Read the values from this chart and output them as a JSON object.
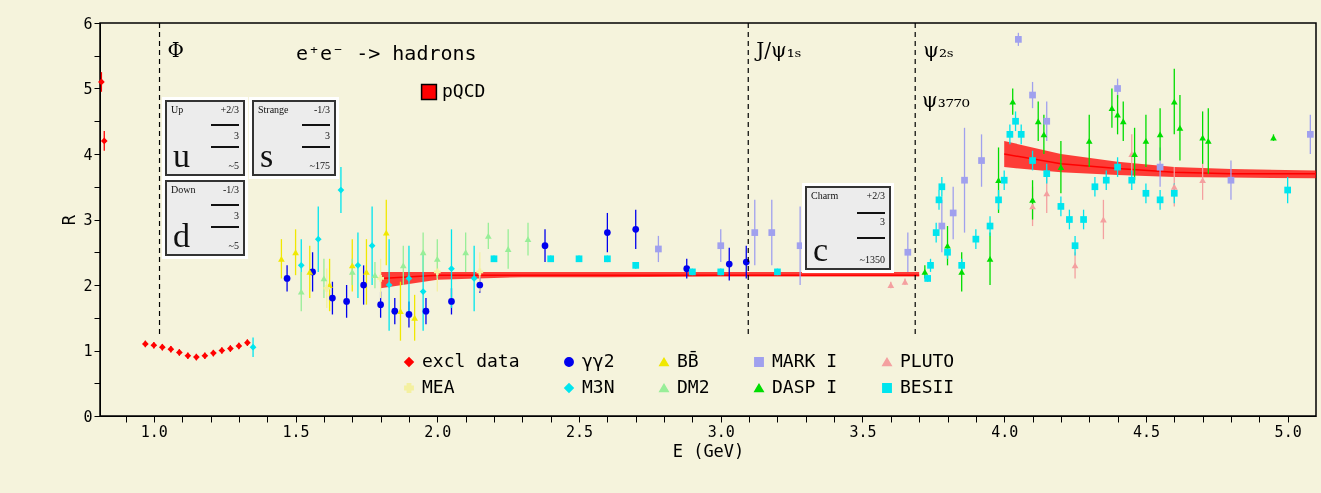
{
  "chart_data": {
    "type": "scatter",
    "title": "e⁺e⁻ -> hadrons",
    "xlabel": "E (GeV)",
    "ylabel": "R",
    "xlim": [
      0.81,
      5.1
    ],
    "ylim": [
      0,
      6
    ],
    "xticks": [
      {
        "value": 0.9,
        "label": null
      },
      {
        "value": 1,
        "label": "1.0"
      },
      {
        "value": 1.1,
        "label": null
      },
      {
        "value": 1.2,
        "label": null
      },
      {
        "value": 1.3,
        "label": null
      },
      {
        "value": 1.4,
        "label": null
      },
      1.5,
      {
        "value": 1.6,
        "label": null
      },
      {
        "value": 1.7,
        "label": null
      },
      {
        "value": 1.8,
        "label": null
      },
      {
        "value": 1.9,
        "label": null
      },
      {
        "value": 2,
        "label": "2.0"
      },
      {
        "value": 2.1,
        "label": null
      },
      {
        "value": 2.2,
        "label": null
      },
      {
        "value": 2.3,
        "label": null
      },
      {
        "value": 2.4,
        "label": null
      },
      2.5,
      {
        "value": 2.6,
        "label": null
      },
      {
        "value": 2.7,
        "label": null
      },
      {
        "value": 2.8,
        "label": null
      },
      {
        "value": 2.9,
        "label": null
      },
      {
        "value": 3,
        "label": "3.0"
      },
      {
        "value": 3.1,
        "label": null
      },
      {
        "value": 3.2,
        "label": null
      },
      {
        "value": 3.3,
        "label": null
      },
      {
        "value": 3.4,
        "label": null
      },
      3.5,
      {
        "value": 3.6,
        "label": null
      },
      {
        "value": 3.7,
        "label": null
      },
      {
        "value": 3.8,
        "label": null
      },
      {
        "value": 3.9,
        "label": null
      },
      {
        "value": 4,
        "label": "4.0"
      },
      {
        "value": 4.1,
        "label": null
      },
      {
        "value": 4.2,
        "label": null
      },
      {
        "value": 4.3,
        "label": null
      },
      {
        "value": 4.4,
        "label": null
      },
      4.5,
      {
        "value": 4.6,
        "label": null
      },
      {
        "value": 4.7,
        "label": null
      },
      {
        "value": 4.8,
        "label": null
      },
      {
        "value": 4.9,
        "label": null
      },
      {
        "value": 5,
        "label": "5.0"
      }
    ],
    "yticks": [
      0,
      {
        "value": 0.5,
        "label": null
      },
      1,
      {
        "value": 1.5,
        "label": null
      },
      2,
      {
        "value": 2.5,
        "label": null
      },
      3,
      {
        "value": 3.5,
        "label": null
      },
      4,
      {
        "value": 4.5,
        "label": null
      },
      5,
      {
        "value": 5.5,
        "label": null
      },
      6
    ],
    "grid": false,
    "legend": "bottom right",
    "series": [
      {
        "name": "pQCD",
        "type": "line",
        "color": "#ff0000",
        "marker": "none",
        "x": [
          1.8,
          2.0,
          2.3,
          2.6,
          3.0,
          3.4,
          3.7,
          3.85,
          4.0,
          4.2,
          4.4,
          4.6,
          4.8,
          5.1
        ],
        "values": [
          2.1,
          2.15,
          2.15,
          2.15,
          2.15,
          2.15,
          2.15,
          null,
          4.0,
          3.85,
          3.78,
          3.72,
          3.7,
          3.7
        ],
        "lower": [
          1.95,
          2.08,
          2.12,
          2.12,
          2.13,
          2.13,
          2.13,
          null,
          3.8,
          3.72,
          3.68,
          3.65,
          3.64,
          3.63
        ],
        "upper": [
          2.2,
          2.2,
          2.2,
          2.2,
          2.2,
          2.2,
          2.2,
          null,
          4.2,
          4.0,
          3.88,
          3.8,
          3.77,
          3.75
        ]
      },
      {
        "name": "excl data",
        "color": "#ff0000",
        "marker": "diamond",
        "x": [
          0.815,
          0.825,
          0.97,
          1.0,
          1.03,
          1.06,
          1.09,
          1.12,
          1.15,
          1.18,
          1.21,
          1.24,
          1.27,
          1.3,
          1.33
        ],
        "values": [
          5.1,
          4.2,
          1.1,
          1.08,
          1.05,
          1.02,
          0.97,
          0.92,
          0.9,
          0.92,
          0.96,
          1.0,
          1.03,
          1.07,
          1.12
        ],
        "errors": [
          0.15,
          0.15,
          0.05,
          0.05,
          0.05,
          0.05,
          0.05,
          0.05,
          0.05,
          0.05,
          0.05,
          0.05,
          0.05,
          0.05,
          0.05
        ]
      },
      {
        "name": "γγ2",
        "color": "#0000ee",
        "marker": "circle",
        "x": [
          1.47,
          1.56,
          1.63,
          1.68,
          1.74,
          1.8,
          1.85,
          1.9,
          1.96,
          2.05,
          2.15,
          2.38,
          2.6,
          2.7,
          2.88,
          3.03,
          3.09
        ],
        "values": [
          2.1,
          2.2,
          1.8,
          1.75,
          2.0,
          1.7,
          1.6,
          1.55,
          1.6,
          1.75,
          2.0,
          2.6,
          2.8,
          2.85,
          2.25,
          2.32,
          2.35
        ],
        "errors": [
          0.2,
          0.3,
          0.25,
          0.25,
          0.3,
          0.2,
          0.2,
          0.2,
          0.2,
          0.2,
          0.12,
          0.25,
          0.3,
          0.3,
          0.15,
          0.25,
          0.25
        ]
      },
      {
        "name": "BB̄",
        "color": "#f0e800",
        "marker": "triangle",
        "x": [
          1.45,
          1.5,
          1.55,
          1.62,
          1.7,
          1.75,
          1.82,
          1.87,
          1.92
        ],
        "values": [
          2.4,
          2.5,
          2.2,
          2.0,
          2.3,
          2.2,
          2.8,
          1.6,
          1.5
        ],
        "errors": [
          0.3,
          0.35,
          0.4,
          0.4,
          0.4,
          0.5,
          0.5,
          0.45,
          0.35
        ]
      },
      {
        "name": "MARK I",
        "color": "#a0a0ee",
        "marker": "square",
        "x": [
          2.78,
          3.0,
          3.12,
          3.18,
          3.28,
          3.66,
          3.78,
          3.82,
          3.86,
          3.92,
          4.05,
          4.1,
          4.15,
          4.4,
          4.55,
          4.8,
          5.08
        ],
        "values": [
          2.55,
          2.6,
          2.8,
          2.8,
          2.6,
          2.5,
          2.9,
          3.1,
          3.6,
          3.9,
          5.75,
          4.9,
          4.5,
          5.0,
          3.8,
          3.6,
          4.3
        ],
        "errors": [
          0.2,
          0.25,
          0.5,
          0.5,
          0.6,
          0.3,
          0.4,
          0.4,
          0.8,
          0.4,
          0.1,
          0.2,
          0.3,
          0.15,
          0.3,
          0.3,
          0.3
        ]
      },
      {
        "name": "PLUTO",
        "color": "#f4a0a0",
        "marker": "triangle",
        "x": [
          3.6,
          3.65,
          4.1,
          4.15,
          4.25,
          4.35,
          4.45,
          4.6,
          4.7
        ],
        "values": [
          2.0,
          2.05,
          3.2,
          3.4,
          2.3,
          3.0,
          4.0,
          3.5,
          3.6
        ],
        "errors": [
          0.05,
          0.05,
          0.3,
          0.3,
          0.2,
          0.3,
          0.3,
          0.3,
          0.3
        ]
      },
      {
        "name": "MEA",
        "color": "#f4f0a0",
        "marker": "cross",
        "x": [
          1.61,
          1.8,
          2.0,
          2.15
        ],
        "values": [
          1.95,
          2.1,
          2.2,
          2.2
        ],
        "errors": [
          0.3,
          0.3,
          0.3,
          0.3
        ]
      },
      {
        "name": "M3N",
        "color": "#00e5ee",
        "marker": "diamond",
        "x": [
          1.35,
          1.52,
          1.58,
          1.66,
          1.72,
          1.77,
          1.83,
          1.9,
          1.95,
          2.05,
          2.13
        ],
        "values": [
          1.05,
          2.3,
          2.7,
          3.45,
          2.3,
          2.6,
          2.0,
          2.1,
          1.9,
          2.25,
          2.1
        ],
        "errors": [
          0.15,
          0.4,
          0.5,
          0.35,
          0.5,
          0.6,
          0.7,
          0.5,
          0.6,
          0.6,
          0.5
        ]
      },
      {
        "name": "DM2",
        "color": "#98ee98",
        "marker": "triangle",
        "x": [
          1.52,
          1.6,
          1.7,
          1.78,
          1.88,
          1.95,
          2.0,
          2.1,
          2.18,
          2.25,
          2.32
        ],
        "values": [
          1.9,
          2.1,
          2.2,
          2.15,
          2.3,
          2.5,
          2.4,
          2.5,
          2.75,
          2.55,
          2.7
        ],
        "errors": [
          0.3,
          0.3,
          0.2,
          0.2,
          0.3,
          0.3,
          0.3,
          0.3,
          0.2,
          0.3,
          0.25
        ]
      },
      {
        "name": "DASP I",
        "color": "#00dd00",
        "marker": "triangle",
        "x": [
          3.72,
          3.8,
          3.85,
          3.95,
          3.98,
          4.03,
          4.1,
          4.12,
          4.14,
          4.2,
          4.3,
          4.38,
          4.4,
          4.42,
          4.46,
          4.5,
          4.55,
          4.6,
          4.62,
          4.7,
          4.72,
          4.95
        ],
        "values": [
          2.2,
          2.6,
          2.2,
          2.4,
          3.6,
          4.8,
          3.3,
          4.5,
          4.3,
          3.8,
          4.2,
          4.7,
          4.6,
          4.5,
          4.0,
          4.2,
          4.3,
          4.8,
          4.4,
          4.25,
          4.2,
          4.25
        ],
        "errors": [
          0.1,
          0.3,
          0.3,
          0.4,
          0.5,
          0.2,
          0.3,
          0.3,
          0.3,
          0.4,
          0.4,
          0.3,
          0.3,
          0.3,
          0.4,
          0.4,
          0.4,
          0.5,
          0.5,
          0.4,
          0.5,
          0.05
        ]
      },
      {
        "name": "BESII",
        "color": "#00e5ee",
        "marker": "square",
        "x": [
          2.2,
          2.4,
          2.5,
          2.6,
          2.7,
          2.9,
          3.0,
          3.2,
          3.73,
          3.74,
          3.76,
          3.77,
          3.78,
          3.8,
          3.85,
          3.9,
          3.95,
          3.98,
          4.0,
          4.02,
          4.04,
          4.06,
          4.1,
          4.15,
          4.2,
          4.23,
          4.25,
          4.28,
          4.32,
          4.36,
          4.4,
          4.45,
          4.5,
          4.55,
          4.6,
          5.0
        ],
        "values": [
          2.4,
          2.4,
          2.4,
          2.4,
          2.3,
          2.2,
          2.2,
          2.2,
          2.1,
          2.3,
          2.8,
          3.3,
          3.5,
          2.5,
          2.3,
          2.7,
          2.9,
          3.3,
          3.6,
          4.3,
          4.5,
          4.3,
          3.9,
          3.7,
          3.2,
          3.0,
          2.6,
          3.0,
          3.5,
          3.6,
          3.8,
          3.6,
          3.4,
          3.3,
          3.4,
          3.45
        ],
        "errors": [
          0.05,
          0.05,
          0.05,
          0.05,
          0.05,
          0.05,
          0.05,
          0.05,
          0.05,
          0.1,
          0.15,
          0.15,
          0.15,
          0.1,
          0.1,
          0.15,
          0.15,
          0.15,
          0.15,
          0.15,
          0.15,
          0.15,
          0.15,
          0.15,
          0.15,
          0.15,
          0.15,
          0.15,
          0.15,
          0.15,
          0.15,
          0.15,
          0.15,
          0.15,
          0.15,
          0.2
        ]
      }
    ],
    "ref_lines": [
      {
        "axis": "x",
        "value": 1.02,
        "label": "Φ",
        "color": "#000000",
        "line_style": "dashed"
      },
      {
        "axis": "x",
        "value": 3.097,
        "label": "J/ψ₁ₛ",
        "color": "#000000",
        "line_style": "dashed"
      },
      {
        "axis": "x",
        "value": 3.686,
        "label": "ψ₂ₛ",
        "color": "#000000",
        "line_style": "dashed"
      }
    ],
    "annotations": [
      "ψ₃₇₇₀",
      "Up",
      "+2/3",
      "3",
      "~5",
      "u",
      "Down",
      "-1/3",
      "3",
      "~5",
      "d",
      "Strange",
      "-1/3",
      "3",
      "~175",
      "s",
      "Charm",
      "+2/3",
      "3",
      "~1350",
      "c"
    ]
  }
}
